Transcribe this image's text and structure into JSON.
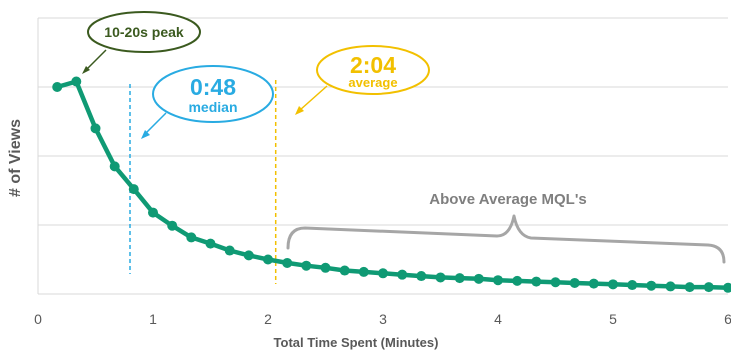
{
  "chart_data": {
    "type": "line",
    "title": "",
    "xlabel": "Total Time Spent (Minutes)",
    "ylabel": "# of Views",
    "xlim": [
      0,
      6
    ],
    "x_ticks": [
      "0",
      "1",
      "2",
      "3",
      "4",
      "5",
      "6"
    ],
    "y_gridlines": 4,
    "grid": "horizontal",
    "legend": "none",
    "series": [
      {
        "color": "#0f9a74",
        "x": [
          0.167,
          0.333,
          0.5,
          0.667,
          0.833,
          1.0,
          1.167,
          1.333,
          1.5,
          1.667,
          1.833,
          2.0,
          2.167,
          2.333,
          2.5,
          2.667,
          2.833,
          3.0,
          3.167,
          3.333,
          3.5,
          3.667,
          3.833,
          4.0,
          4.167,
          4.333,
          4.5,
          4.667,
          4.833,
          5.0,
          5.167,
          5.333,
          5.5,
          5.667,
          5.833,
          6.0
        ],
        "y": [
          3.0,
          3.08,
          2.4,
          1.85,
          1.52,
          1.18,
          0.99,
          0.82,
          0.73,
          0.63,
          0.56,
          0.5,
          0.45,
          0.41,
          0.38,
          0.34,
          0.32,
          0.3,
          0.28,
          0.26,
          0.24,
          0.23,
          0.22,
          0.2,
          0.19,
          0.18,
          0.17,
          0.16,
          0.15,
          0.14,
          0.13,
          0.12,
          0.11,
          0.1,
          0.1,
          0.09
        ]
      }
    ],
    "annotations": {
      "peak": {
        "label": "10-20s peak",
        "color": "#3b5a1f"
      },
      "median": {
        "value": "0:48",
        "label": "median",
        "x": 0.8,
        "color": "#29abe2"
      },
      "average": {
        "value": "2:04",
        "label": "average",
        "x": 2.067,
        "color": "#f2c000"
      },
      "brace": {
        "label": "Above Average MQL's",
        "x_start": 2.17,
        "x_end": 6.0,
        "color": "#a6a6a6"
      }
    }
  }
}
